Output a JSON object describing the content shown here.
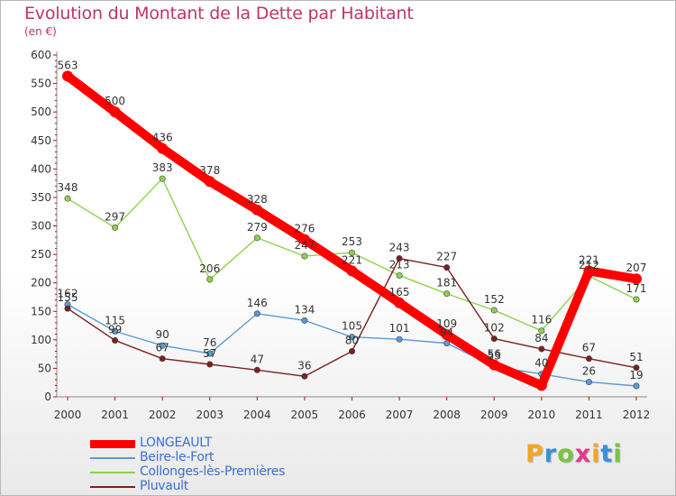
{
  "chart_data": {
    "type": "line",
    "title": "Evolution du Montant de la Dette par Habitant",
    "subtitle": "(en €)",
    "x": [
      "2000",
      "2001",
      "2002",
      "2003",
      "2004",
      "2005",
      "2006",
      "2007",
      "2008",
      "2009",
      "2010",
      "2011",
      "2012"
    ],
    "ylim": [
      0,
      600
    ],
    "yticks": [
      0,
      50,
      100,
      150,
      200,
      250,
      300,
      350,
      400,
      450,
      500,
      550,
      600
    ],
    "grid": false,
    "legend": "bottom-left",
    "series": [
      {
        "name": "LONGEAULT",
        "color": "#ff0000",
        "values": [
          563,
          500,
          436,
          378,
          328,
          276,
          221,
          165,
          109,
          56,
          20,
          221,
          207
        ],
        "labels": [
          "563",
          "500",
          "436",
          "378",
          "328",
          "276",
          "221",
          "165",
          "109",
          "56",
          "",
          "221",
          "207"
        ]
      },
      {
        "name": "Beire-le-Fort",
        "color": "#5a9bd5",
        "values": [
          162,
          115,
          90,
          76,
          146,
          134,
          105,
          101,
          94,
          53,
          40,
          26,
          19
        ],
        "labels": [
          "162",
          "115",
          "90",
          "76",
          "146",
          "134",
          "105",
          "101",
          "94",
          "53",
          "40",
          "26",
          "19"
        ]
      },
      {
        "name": "Collonges-lès-Premières",
        "color": "#8fd14f",
        "values": [
          348,
          297,
          383,
          206,
          279,
          247,
          253,
          213,
          181,
          152,
          116,
          212,
          171
        ],
        "labels": [
          "348",
          "297",
          "383",
          "206",
          "279",
          "247",
          "253",
          "213",
          "181",
          "152",
          "116",
          "212",
          "171"
        ]
      },
      {
        "name": "Pluvault",
        "color": "#7b2020",
        "values": [
          155,
          99,
          67,
          57,
          47,
          36,
          80,
          243,
          227,
          102,
          84,
          67,
          51
        ],
        "labels": [
          "155",
          "99",
          "67",
          "57",
          "47",
          "36",
          "80",
          "243",
          "227",
          "102",
          "84",
          "67",
          "51"
        ]
      }
    ]
  },
  "brand": {
    "letters": [
      "P",
      "r",
      "o",
      "x",
      "i",
      "t",
      "i"
    ],
    "colors": [
      "#f5a623",
      "#3a8fd8",
      "#7cc242",
      "#e23a8a",
      "#f5a623",
      "#3a8fd8",
      "#7cc242"
    ]
  }
}
